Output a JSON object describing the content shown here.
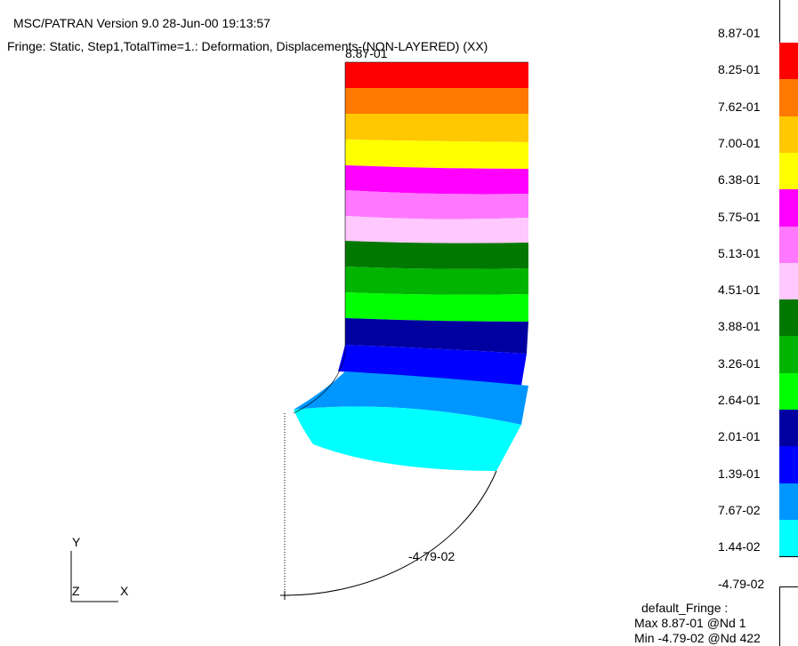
{
  "header": {
    "version_line": "MSC/PATRAN Version 9.0 28-Jun-00 19:13:57",
    "fringe_line": "Fringe: Static, Step1,TotalTime=1.: Deformation, Displacements-(NON-LAYERED) (XX)"
  },
  "plot": {
    "max_marker": "8.87-01",
    "min_marker": "-4.79-02",
    "bands": [
      {
        "color": "#ff0000"
      },
      {
        "color": "#ff7800"
      },
      {
        "color": "#ffc800"
      },
      {
        "color": "#ffff00"
      },
      {
        "color": "#ff00ff"
      },
      {
        "color": "#ff78ff"
      },
      {
        "color": "#ffc8ff"
      },
      {
        "color": "#007800"
      },
      {
        "color": "#00b400"
      },
      {
        "color": "#00ff00"
      },
      {
        "color": "#0000a0"
      },
      {
        "color": "#0000ff"
      },
      {
        "color": "#0096ff"
      },
      {
        "color": "#00ffff"
      }
    ]
  },
  "axes": {
    "y_label": "Y",
    "z_label": "Z",
    "x_label": "X"
  },
  "legend": {
    "ticks": [
      "8.87-01",
      "8.25-01",
      "7.62-01",
      "7.00-01",
      "6.38-01",
      "5.75-01",
      "5.13-01",
      "4.51-01",
      "3.88-01",
      "3.26-01",
      "2.64-01",
      "2.01-01",
      "1.39-01",
      "7.67-02",
      "1.44-02",
      "-4.79-02"
    ],
    "colors": [
      "#ff0000",
      "#ff7800",
      "#ffc800",
      "#ffff00",
      "#ff00ff",
      "#ff78ff",
      "#ffc8ff",
      "#007800",
      "#00b400",
      "#00ff00",
      "#0000a0",
      "#0000ff",
      "#0096ff",
      "#00ffff",
      "#ffffff"
    ]
  },
  "summary": {
    "name": "default_Fringe :",
    "max": "Max 8.87-01 @Nd 1",
    "min": "Min -4.79-02 @Nd 422"
  }
}
